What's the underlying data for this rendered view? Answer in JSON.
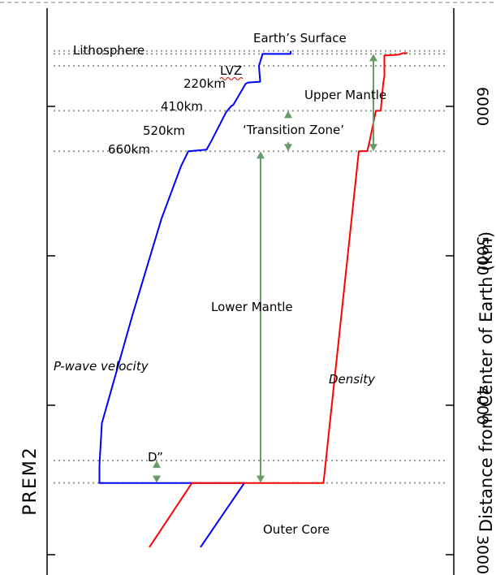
{
  "chart_data": {
    "type": "line",
    "title": "",
    "model_label": "PREM2",
    "ylabel": "Distance from Center of Earth (km)",
    "ylim": [
      3050,
      6500
    ],
    "y_ticks": [
      3000,
      4000,
      5000,
      6000
    ],
    "y_tick_labels": [
      "3000",
      "4000",
      "5000",
      "6000"
    ],
    "series": [
      {
        "name": "P-wave velocity",
        "color": "#0000ff",
        "points": [
          [
            0.63,
            3050
          ],
          [
            0.81,
            3480
          ],
          [
            0.215,
            3480
          ],
          [
            0.215,
            3600
          ],
          [
            0.225,
            3880
          ],
          [
            0.35,
            4600
          ],
          [
            0.47,
            5250
          ],
          [
            0.55,
            5600
          ],
          [
            0.58,
            5700
          ],
          [
            0.655,
            5711
          ],
          [
            0.675,
            5770
          ],
          [
            0.735,
            5961
          ],
          [
            0.755,
            6000
          ],
          [
            0.765,
            6011
          ],
          [
            0.815,
            6151
          ],
          [
            0.825,
            6160
          ],
          [
            0.875,
            6165
          ],
          [
            0.87,
            6271
          ],
          [
            0.885,
            6351
          ],
          [
            1.0,
            6351
          ],
          [
            1.0,
            6371
          ]
        ]
      },
      {
        "name": "Density",
        "color": "#ff0000",
        "points": [
          [
            0.42,
            3050
          ],
          [
            0.595,
            3480
          ],
          [
            1.135,
            3480
          ],
          [
            1.28,
            5700
          ],
          [
            1.315,
            5701
          ],
          [
            1.325,
            5771
          ],
          [
            1.35,
            5970
          ],
          [
            1.37,
            5971
          ],
          [
            1.38,
            6151
          ],
          [
            1.385,
            6200
          ],
          [
            1.385,
            6340
          ],
          [
            1.445,
            6346
          ],
          [
            1.46,
            6356
          ],
          [
            1.48,
            6356
          ]
        ]
      }
    ],
    "layer_boundaries_km": [
      3480,
      3630,
      5700,
      5971,
      6271,
      6351,
      6371
    ],
    "annotations": {
      "earth_surface": "Earth’s Surface",
      "lithosphere": "Lithosphere",
      "lvz": "LVZ",
      "d220": "220km",
      "d410": "410km",
      "d520": "520km",
      "d660": "660km",
      "upper_mantle": "Upper Mantle",
      "transition_zone": "‘Transition Zone’",
      "lower_mantle": "Lower Mantle",
      "p_wave": "P-wave velocity",
      "density": "Density",
      "d_double_prime": "D”",
      "outer_core": "Outer Core"
    },
    "colors": {
      "p_wave": "#0000ff",
      "density": "#ff0000",
      "arrows": "#6a9a6a",
      "boundaries": "#8aa08a"
    },
    "grid": false
  }
}
